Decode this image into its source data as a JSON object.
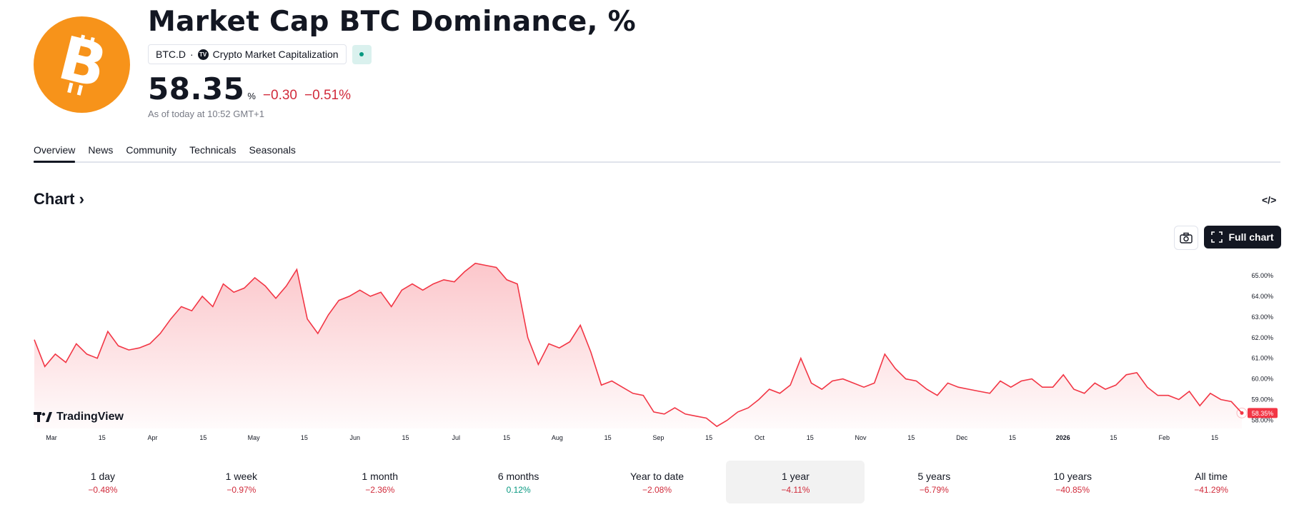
{
  "header": {
    "title": "Market Cap BTC Dominance, %",
    "symbol": "BTC.D",
    "exchange": "Crypto Market Capitalization",
    "price": "58.35",
    "unit": "%",
    "change_abs": "−0.30",
    "change_pct": "−0.51%",
    "as_of": "As of today at 10:52 GMT+1"
  },
  "tabs": [
    "Overview",
    "News",
    "Community",
    "Technicals",
    "Seasonals"
  ],
  "chart_section": {
    "heading": "Chart",
    "full_chart_label": "Full chart",
    "brand": "TradingView"
  },
  "colors": {
    "accent": "#f7931a",
    "negative": "#d12b3b",
    "positive": "#089981",
    "line": "#f23645"
  },
  "chart_data": {
    "type": "area",
    "x_tick_labels": [
      "Mar",
      "15",
      "Apr",
      "15",
      "May",
      "15",
      "Jun",
      "15",
      "Jul",
      "15",
      "Aug",
      "15",
      "Sep",
      "15",
      "Oct",
      "15",
      "Nov",
      "15",
      "Dec",
      "15",
      "2026",
      "15",
      "Feb",
      "15"
    ],
    "y_tick_labels": [
      "65.00%",
      "64.00%",
      "63.00%",
      "62.00%",
      "61.00%",
      "60.00%",
      "59.00%",
      "58.00%"
    ],
    "ylim": [
      57.6,
      65.9
    ],
    "last_value_label": "58.35%",
    "series": [
      {
        "values": [
          61.9,
          60.6,
          61.2,
          60.8,
          61.7,
          61.2,
          61.0,
          62.3,
          61.6,
          61.4,
          61.5,
          61.7,
          62.2,
          62.9,
          63.5,
          63.3,
          64.0,
          63.5,
          64.6,
          64.2,
          64.4,
          64.9,
          64.5,
          63.9,
          64.5,
          65.3,
          62.9,
          62.2,
          63.1,
          63.8,
          64.0,
          64.3,
          64.0,
          64.2,
          63.5,
          64.3,
          64.6,
          64.3,
          64.6,
          64.8,
          64.7,
          65.2,
          65.6,
          65.5,
          65.4,
          64.8,
          64.6,
          62.0,
          60.7,
          61.7,
          61.5,
          61.8,
          62.6,
          61.3,
          59.7,
          59.9,
          59.6,
          59.3,
          59.2,
          58.4,
          58.3,
          58.6,
          58.3,
          58.2,
          58.1,
          57.7,
          58.0,
          58.4,
          58.6,
          59.0,
          59.5,
          59.3,
          59.7,
          61.0,
          59.8,
          59.5,
          59.9,
          60.0,
          59.8,
          59.6,
          59.8,
          61.2,
          60.5,
          60.0,
          59.9,
          59.5,
          59.2,
          59.8,
          59.6,
          59.5,
          59.4,
          59.3,
          59.9,
          59.6,
          59.9,
          60.0,
          59.6,
          59.6,
          60.2,
          59.5,
          59.3,
          59.8,
          59.5,
          59.7,
          60.2,
          60.3,
          59.6,
          59.2,
          59.2,
          59.0,
          59.4,
          58.7,
          59.3,
          59.0,
          58.9,
          58.35
        ]
      }
    ]
  },
  "periods": [
    {
      "label": "1 day",
      "value": "−0.48%",
      "sign": "neg"
    },
    {
      "label": "1 week",
      "value": "−0.97%",
      "sign": "neg"
    },
    {
      "label": "1 month",
      "value": "−2.36%",
      "sign": "neg"
    },
    {
      "label": "6 months",
      "value": "0.12%",
      "sign": "pos"
    },
    {
      "label": "Year to date",
      "value": "−2.08%",
      "sign": "neg"
    },
    {
      "label": "1 year",
      "value": "−4.11%",
      "sign": "neg",
      "active": true
    },
    {
      "label": "5 years",
      "value": "−6.79%",
      "sign": "neg"
    },
    {
      "label": "10 years",
      "value": "−40.85%",
      "sign": "neg"
    },
    {
      "label": "All time",
      "value": "−41.29%",
      "sign": "neg"
    }
  ]
}
